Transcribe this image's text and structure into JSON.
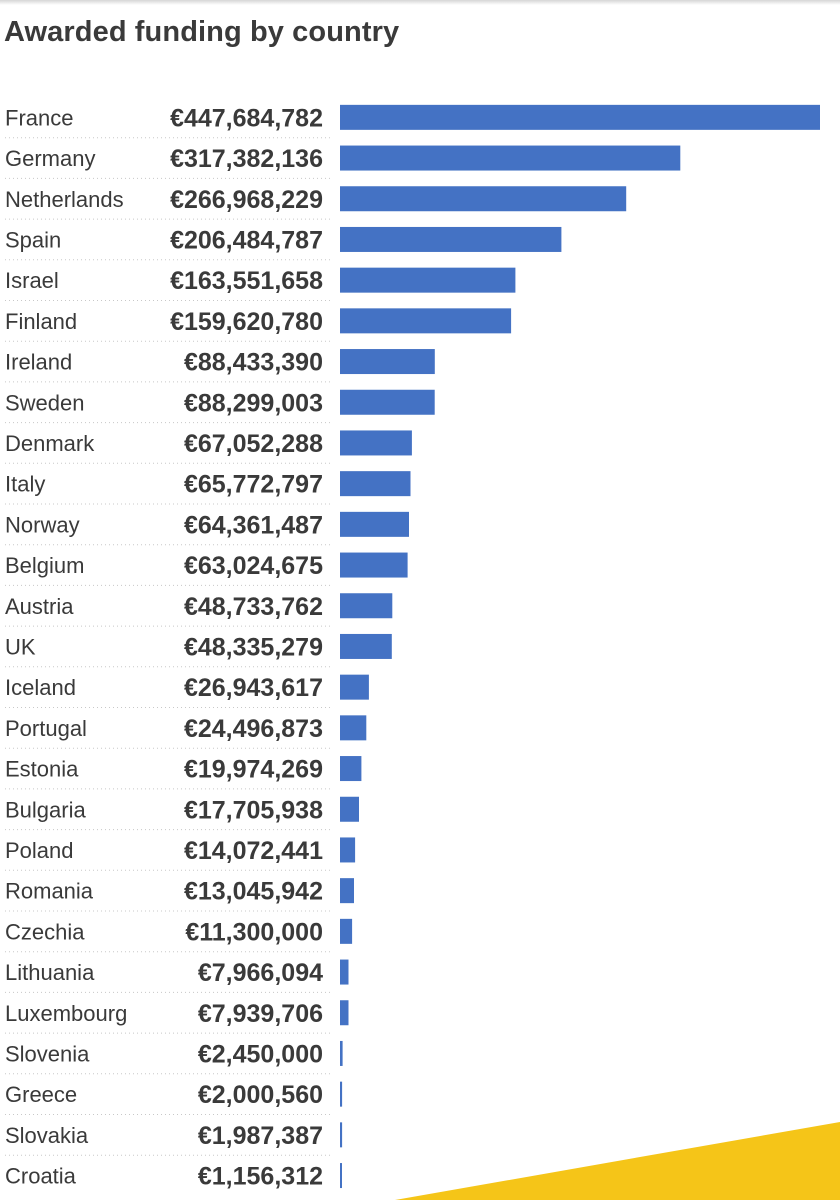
{
  "title": "Awarded funding by country",
  "colors": {
    "bar": "#4472c4",
    "text": "#3a3a3a",
    "accent_stripe": "#f5c518"
  },
  "chart_data": {
    "type": "bar",
    "orientation": "horizontal",
    "title": "Awarded funding by country",
    "grid": false,
    "legend": "none",
    "xlim": [
      0,
      447684782
    ],
    "categories": [
      "France",
      "Germany",
      "Netherlands",
      "Spain",
      "Israel",
      "Finland",
      "Ireland",
      "Sweden",
      "Denmark",
      "Italy",
      "Norway",
      "Belgium",
      "Austria",
      "UK",
      "Iceland",
      "Portugal",
      "Estonia",
      "Bulgaria",
      "Poland",
      "Romania",
      "Czechia",
      "Lithuania",
      "Luxembourg",
      "Slovenia",
      "Greece",
      "Slovakia",
      "Croatia"
    ],
    "values": [
      447684782,
      317382136,
      266968229,
      206484787,
      163551658,
      159620780,
      88433390,
      88299003,
      67052288,
      65772797,
      64361487,
      63024675,
      48733762,
      48335279,
      26943617,
      24496873,
      19974269,
      17705938,
      14072441,
      13045942,
      11300000,
      7966094,
      7939706,
      2450000,
      2000560,
      1987387,
      1156312
    ],
    "value_labels": [
      "€447,684,782",
      "€317,382,136",
      "€266,968,229",
      "€206,484,787",
      "€163,551,658",
      "€159,620,780",
      "€88,433,390",
      "€88,299,003",
      "€67,052,288",
      "€65,772,797",
      "€64,361,487",
      "€63,024,675",
      "€48,733,762",
      "€48,335,279",
      "€26,943,617",
      "€24,496,873",
      "€19,974,269",
      "€17,705,938",
      "€14,072,441",
      "€13,045,942",
      "€11,300,000",
      "€7,966,094",
      "€7,939,706",
      "€2,450,000",
      "€2,000,560",
      "€1,987,387",
      "€1,156,312"
    ]
  }
}
